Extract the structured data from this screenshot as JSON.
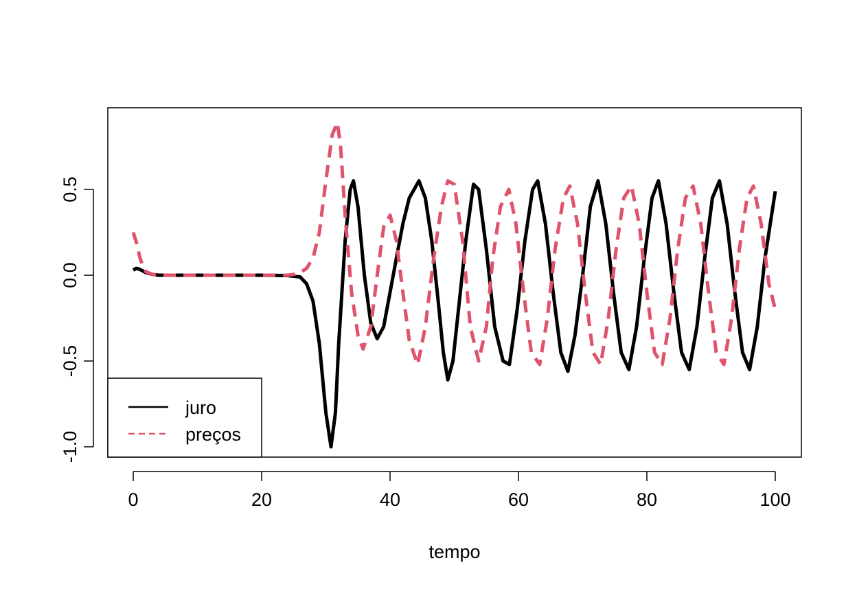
{
  "chart_data": {
    "type": "line",
    "title": "",
    "xlabel": "tempo",
    "ylabel": "",
    "xlim": [
      0,
      100
    ],
    "ylim": [
      -1.0,
      0.9
    ],
    "x_ticks": [
      0,
      20,
      40,
      60,
      80,
      100
    ],
    "x_tick_labels": [
      "0",
      "20",
      "40",
      "60",
      "80",
      "100"
    ],
    "y_ticks": [
      -1.0,
      -0.5,
      0.0,
      0.5
    ],
    "y_tick_labels": [
      "-1.0",
      "-0.5",
      "0.0",
      "0.5"
    ],
    "legend_position": "bottom-left",
    "series": [
      {
        "name": "juro",
        "color": "#000000",
        "dash": "solid",
        "points": [
          [
            0,
            0.03
          ],
          [
            0.5,
            0.04
          ],
          [
            1,
            0.035
          ],
          [
            2,
            0.015
          ],
          [
            3,
            0.005
          ],
          [
            4,
            0.0
          ],
          [
            10,
            0.0
          ],
          [
            20,
            0.0
          ],
          [
            24,
            -0.002
          ],
          [
            26,
            -0.01
          ],
          [
            27,
            -0.05
          ],
          [
            28,
            -0.15
          ],
          [
            29,
            -0.4
          ],
          [
            30,
            -0.8
          ],
          [
            30.8,
            -1.0
          ],
          [
            31.5,
            -0.8
          ],
          [
            32,
            -0.4
          ],
          [
            33,
            0.2
          ],
          [
            33.8,
            0.5
          ],
          [
            34.3,
            0.55
          ],
          [
            35,
            0.4
          ],
          [
            36,
            0.0
          ],
          [
            37,
            -0.28
          ],
          [
            38,
            -0.37
          ],
          [
            39,
            -0.3
          ],
          [
            40,
            -0.1
          ],
          [
            41,
            0.1
          ],
          [
            42,
            0.3
          ],
          [
            43,
            0.45
          ],
          [
            44.5,
            0.55
          ],
          [
            45.5,
            0.45
          ],
          [
            46.5,
            0.2
          ],
          [
            47.5,
            -0.15
          ],
          [
            48.3,
            -0.45
          ],
          [
            49,
            -0.61
          ],
          [
            49.8,
            -0.5
          ],
          [
            50.8,
            -0.15
          ],
          [
            51.8,
            0.2
          ],
          [
            53,
            0.53
          ],
          [
            53.8,
            0.5
          ],
          [
            55,
            0.15
          ],
          [
            56.3,
            -0.3
          ],
          [
            57.6,
            -0.5
          ],
          [
            58.6,
            -0.52
          ],
          [
            59.8,
            -0.2
          ],
          [
            61,
            0.2
          ],
          [
            62.2,
            0.5
          ],
          [
            63,
            0.55
          ],
          [
            64.2,
            0.3
          ],
          [
            65.4,
            -0.1
          ],
          [
            66.6,
            -0.45
          ],
          [
            67.7,
            -0.56
          ],
          [
            68.8,
            -0.35
          ],
          [
            70,
            0.0
          ],
          [
            71.2,
            0.4
          ],
          [
            72.4,
            0.55
          ],
          [
            73.6,
            0.3
          ],
          [
            74.8,
            -0.1
          ],
          [
            76,
            -0.45
          ],
          [
            77.2,
            -0.55
          ],
          [
            78.4,
            -0.3
          ],
          [
            79.6,
            0.1
          ],
          [
            80.8,
            0.45
          ],
          [
            81.8,
            0.55
          ],
          [
            83,
            0.3
          ],
          [
            84.2,
            -0.1
          ],
          [
            85.4,
            -0.45
          ],
          [
            86.6,
            -0.55
          ],
          [
            87.8,
            -0.3
          ],
          [
            89,
            0.1
          ],
          [
            90.2,
            0.45
          ],
          [
            91.3,
            0.55
          ],
          [
            92.5,
            0.3
          ],
          [
            93.7,
            -0.1
          ],
          [
            94.9,
            -0.45
          ],
          [
            96,
            -0.55
          ],
          [
            97.2,
            -0.3
          ],
          [
            98.4,
            0.1
          ],
          [
            100,
            0.49
          ]
        ]
      },
      {
        "name": "preços",
        "color": "#DF536B",
        "dash": "dashed",
        "points": [
          [
            0,
            0.25
          ],
          [
            0.5,
            0.19
          ],
          [
            1,
            0.11
          ],
          [
            1.5,
            0.05
          ],
          [
            2,
            0.02
          ],
          [
            3,
            0.005
          ],
          [
            4,
            0.0
          ],
          [
            10,
            0.0
          ],
          [
            20,
            0.0
          ],
          [
            24,
            0.0
          ],
          [
            25,
            0.005
          ],
          [
            26,
            0.015
          ],
          [
            27,
            0.04
          ],
          [
            28,
            0.1
          ],
          [
            29,
            0.25
          ],
          [
            30,
            0.55
          ],
          [
            31,
            0.82
          ],
          [
            31.8,
            0.89
          ],
          [
            32.3,
            0.75
          ],
          [
            33,
            0.35
          ],
          [
            34,
            -0.1
          ],
          [
            35,
            -0.35
          ],
          [
            35.8,
            -0.43
          ],
          [
            37,
            -0.3
          ],
          [
            38,
            0.0
          ],
          [
            39,
            0.28
          ],
          [
            40,
            0.35
          ],
          [
            41,
            0.2
          ],
          [
            42,
            -0.1
          ],
          [
            43,
            -0.38
          ],
          [
            44.3,
            -0.52
          ],
          [
            45.5,
            -0.3
          ],
          [
            46.8,
            0.1
          ],
          [
            48,
            0.4
          ],
          [
            49,
            0.55
          ],
          [
            50,
            0.53
          ],
          [
            51.3,
            0.2
          ],
          [
            52.5,
            -0.3
          ],
          [
            53.8,
            -0.5
          ],
          [
            55,
            -0.3
          ],
          [
            56,
            0.1
          ],
          [
            57.2,
            0.4
          ],
          [
            58.5,
            0.5
          ],
          [
            59.6,
            0.3
          ],
          [
            60.8,
            -0.1
          ],
          [
            62,
            -0.45
          ],
          [
            63.3,
            -0.52
          ],
          [
            64.5,
            -0.25
          ],
          [
            65.7,
            0.15
          ],
          [
            67,
            0.45
          ],
          [
            68,
            0.52
          ],
          [
            69.2,
            0.3
          ],
          [
            70.4,
            -0.1
          ],
          [
            71.6,
            -0.45
          ],
          [
            72.8,
            -0.52
          ],
          [
            74,
            -0.25
          ],
          [
            75.2,
            0.15
          ],
          [
            76.4,
            0.45
          ],
          [
            77.6,
            0.52
          ],
          [
            78.8,
            0.3
          ],
          [
            80,
            -0.1
          ],
          [
            81.2,
            -0.45
          ],
          [
            82.4,
            -0.52
          ],
          [
            83.6,
            -0.25
          ],
          [
            84.8,
            0.15
          ],
          [
            86,
            0.45
          ],
          [
            87.2,
            0.52
          ],
          [
            88.4,
            0.3
          ],
          [
            89.6,
            -0.1
          ],
          [
            90.8,
            -0.45
          ],
          [
            92,
            -0.52
          ],
          [
            93.2,
            -0.25
          ],
          [
            94.4,
            0.15
          ],
          [
            95.6,
            0.45
          ],
          [
            96.6,
            0.52
          ],
          [
            97.8,
            0.3
          ],
          [
            99,
            -0.05
          ],
          [
            100,
            -0.2
          ]
        ]
      }
    ],
    "legend": [
      {
        "label": "juro",
        "color": "#000000",
        "dash": "solid"
      },
      {
        "label": "preços",
        "color": "#DF536B",
        "dash": "dashed"
      }
    ]
  }
}
